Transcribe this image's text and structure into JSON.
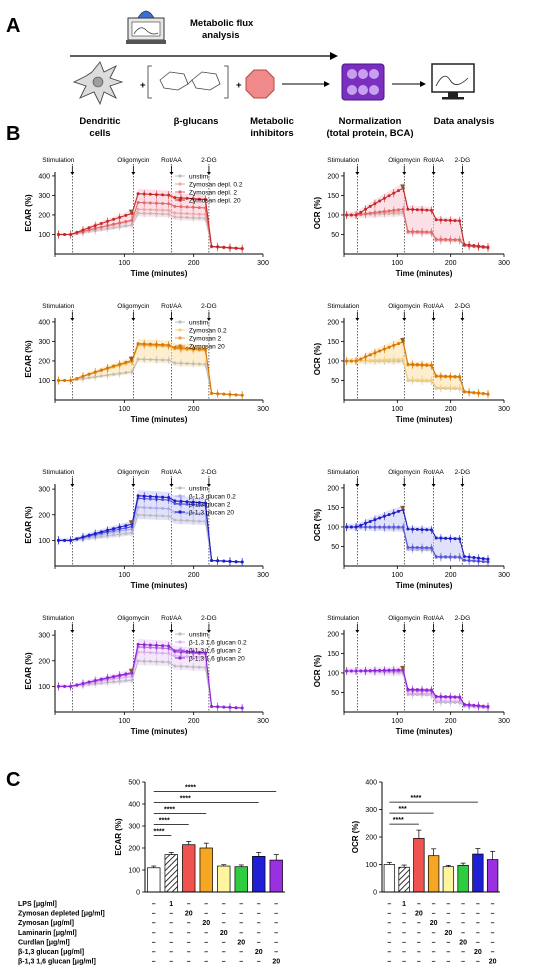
{
  "panel_labels": {
    "a": "A",
    "b": "B",
    "c": "C"
  },
  "workflow": {
    "flux_title_1": "Metabolic flux",
    "flux_title_2": "analysis",
    "steps": [
      "Dendritic cells",
      "β-glucans",
      "Metabolic inhibitors",
      "Normalization (total protein, BCA)",
      "Data analysis"
    ]
  },
  "events": {
    "stimulation": "Stimulation",
    "oligomycin": "Oligomycin",
    "rotaa": "Rot/AA",
    "dg": "2-DG"
  },
  "colors": {
    "unstim": "#bdbdbd",
    "zd_light": "#f2a3a3",
    "zd_mid": "#e06a6a",
    "zd_dark": "#c62828",
    "zy_light": "#f7d07a",
    "zy_mid": "#eda23c",
    "zy_dark": "#d97706",
    "b13_light": "#a9a9ee",
    "b13_mid": "#5656e0",
    "b13_dark": "#1c1cc8",
    "b16_light": "#d9aef2",
    "b16_mid": "#b66ae6",
    "b16_dark": "#8e24d8",
    "band_zd": "#f9c7d5",
    "band_zy": "#fbe0a8",
    "band_b13": "#c9c9f7",
    "band_b16": "#ecd3f7"
  },
  "chart_data": [
    {
      "type": "line",
      "id": "ecar_zd",
      "xlabel": "Time (minutes)",
      "ylabel": "ECAR (%)",
      "xlim": [
        0,
        300
      ],
      "ylim": [
        0,
        420
      ],
      "xticks": [
        0,
        100,
        200,
        300
      ],
      "yticks": [
        100,
        200,
        300,
        400
      ],
      "events_x": [
        25,
        113,
        168,
        222
      ],
      "series": [
        {
          "name": "unstim.",
          "color_key": "unstim",
          "y": [
            100,
            150,
            210,
            190,
            40
          ]
        },
        {
          "name": "Zymosan depl. 0.2",
          "color_key": "zd_light",
          "y": [
            100,
            170,
            230,
            210,
            38
          ]
        },
        {
          "name": "Zymosan depl. 2",
          "color_key": "zd_mid",
          "y": [
            100,
            175,
            265,
            245,
            38
          ]
        },
        {
          "name": "Zymosan depl. 20",
          "color_key": "zd_dark",
          "y": [
            100,
            210,
            310,
            290,
            40
          ]
        }
      ]
    },
    {
      "type": "line",
      "id": "ocr_zd",
      "xlabel": "Time (minutes)",
      "ylabel": "OCR (%)",
      "xlim": [
        0,
        300
      ],
      "ylim": [
        0,
        210
      ],
      "xticks": [
        0,
        100,
        200,
        300
      ],
      "yticks": [
        50,
        100,
        150,
        200
      ],
      "events_x": [
        25,
        113,
        168,
        222
      ],
      "series": [
        {
          "name": "unstim.",
          "color_key": "unstim",
          "y": [
            100,
            105,
            55,
            35,
            22
          ]
        },
        {
          "name": "Zymosan depl. 0.2",
          "color_key": "zd_light",
          "y": [
            100,
            110,
            55,
            35,
            22
          ]
        },
        {
          "name": "Zymosan depl. 2",
          "color_key": "zd_mid",
          "y": [
            100,
            115,
            58,
            38,
            22
          ]
        },
        {
          "name": "Zymosan depl. 20",
          "color_key": "zd_dark",
          "y": [
            100,
            170,
            115,
            88,
            25
          ]
        }
      ]
    },
    {
      "type": "line",
      "id": "ecar_zy",
      "xlabel": "Time (minutes)",
      "ylabel": "ECAR (%)",
      "xlim": [
        0,
        300
      ],
      "ylim": [
        0,
        420
      ],
      "xticks": [
        0,
        100,
        200,
        300
      ],
      "yticks": [
        100,
        200,
        300,
        400
      ],
      "events_x": [
        25,
        113,
        168,
        222
      ],
      "series": [
        {
          "name": "unstim.",
          "color_key": "unstim",
          "y": [
            100,
            145,
            210,
            190,
            35
          ]
        },
        {
          "name": "Zymosan 0.2",
          "color_key": "zy_light",
          "y": [
            100,
            195,
            280,
            260,
            35
          ]
        },
        {
          "name": "Zymosan 2",
          "color_key": "zy_mid",
          "y": [
            100,
            200,
            285,
            265,
            35
          ]
        },
        {
          "name": "Zymosan 20",
          "color_key": "zy_dark",
          "y": [
            100,
            205,
            290,
            270,
            35
          ]
        }
      ]
    },
    {
      "type": "line",
      "id": "ocr_zy",
      "xlabel": "Time (minutes)",
      "ylabel": "OCR (%)",
      "xlim": [
        0,
        300
      ],
      "ylim": [
        0,
        210
      ],
      "xticks": [
        0,
        100,
        200,
        300
      ],
      "yticks": [
        50,
        100,
        150,
        200
      ],
      "events_x": [
        25,
        113,
        168,
        222
      ],
      "series": [
        {
          "name": "unstim.",
          "color_key": "unstim",
          "y": [
            100,
            100,
            50,
            30,
            20
          ]
        },
        {
          "name": "Zymosan 0.2",
          "color_key": "zy_light",
          "y": [
            100,
            105,
            52,
            32,
            20
          ]
        },
        {
          "name": "Zymosan 2",
          "color_key": "zy_mid",
          "y": [
            100,
            150,
            90,
            60,
            22
          ]
        },
        {
          "name": "Zymosan 20",
          "color_key": "zy_dark",
          "y": [
            100,
            150,
            92,
            62,
            22
          ]
        }
      ]
    },
    {
      "type": "line",
      "id": "ecar_b13",
      "xlabel": "Time (minutes)",
      "ylabel": "ECAR (%)",
      "xlim": [
        0,
        300
      ],
      "ylim": [
        0,
        320
      ],
      "xticks": [
        0,
        100,
        200,
        300
      ],
      "yticks": [
        100,
        200,
        300
      ],
      "events_x": [
        25,
        113,
        168,
        222
      ],
      "series": [
        {
          "name": "unstim.",
          "color_key": "unstim",
          "y": [
            100,
            130,
            200,
            180,
            22
          ]
        },
        {
          "name": "β-1,3 glucan 0.2",
          "color_key": "b13_light",
          "y": [
            100,
            145,
            230,
            210,
            22
          ]
        },
        {
          "name": "β-1,3 glucan 2",
          "color_key": "b13_mid",
          "y": [
            100,
            155,
            265,
            245,
            22
          ]
        },
        {
          "name": "β-1,3 glucan 20",
          "color_key": "b13_dark",
          "y": [
            100,
            165,
            275,
            255,
            22
          ]
        }
      ]
    },
    {
      "type": "line",
      "id": "ocr_b13",
      "xlabel": "Time (minutes)",
      "ylabel": "OCR (%)",
      "xlim": [
        0,
        300
      ],
      "ylim": [
        0,
        210
      ],
      "xticks": [
        0,
        100,
        200,
        300
      ],
      "yticks": [
        50,
        100,
        150,
        200
      ],
      "events_x": [
        25,
        113,
        168,
        222
      ],
      "series": [
        {
          "name": "unstim.",
          "color_key": "unstim",
          "y": [
            100,
            95,
            42,
            22,
            15
          ]
        },
        {
          "name": "β-1,3 glucan 0.2",
          "color_key": "b13_light",
          "y": [
            100,
            98,
            45,
            22,
            15
          ]
        },
        {
          "name": "β-1,3 glucan 2",
          "color_key": "b13_mid",
          "y": [
            100,
            100,
            48,
            24,
            15
          ]
        },
        {
          "name": "β-1,3 glucan 20",
          "color_key": "b13_dark",
          "y": [
            100,
            145,
            95,
            72,
            25
          ]
        }
      ]
    },
    {
      "type": "line",
      "id": "ecar_b16",
      "xlabel": "Time (minutes)",
      "ylabel": "ECAR (%)",
      "xlim": [
        0,
        300
      ],
      "ylim": [
        0,
        320
      ],
      "xticks": [
        0,
        100,
        200,
        300
      ],
      "yticks": [
        100,
        200,
        300
      ],
      "events_x": [
        25,
        113,
        168,
        222
      ],
      "series": [
        {
          "name": "unstim.",
          "color_key": "unstim",
          "y": [
            100,
            125,
            200,
            180,
            22
          ]
        },
        {
          "name": "β-1,3 1,6 glucan 0.2",
          "color_key": "b16_light",
          "y": [
            100,
            140,
            235,
            220,
            22
          ]
        },
        {
          "name": "β-1,3 1,6 glucan 2",
          "color_key": "b16_mid",
          "y": [
            100,
            150,
            255,
            235,
            22
          ]
        },
        {
          "name": "β-1,3 1,6 glucan 20",
          "color_key": "b16_dark",
          "y": [
            100,
            155,
            265,
            240,
            22
          ]
        }
      ]
    },
    {
      "type": "line",
      "id": "ocr_b16",
      "xlabel": "Time (minutes)",
      "ylabel": "OCR (%)",
      "xlim": [
        0,
        300
      ],
      "ylim": [
        0,
        210
      ],
      "xticks": [
        0,
        100,
        200,
        300
      ],
      "yticks": [
        50,
        100,
        150,
        200
      ],
      "events_x": [
        25,
        113,
        168,
        222
      ],
      "series": [
        {
          "name": "unstim.",
          "color_key": "unstim",
          "y": [
            105,
            100,
            45,
            25,
            15
          ]
        },
        {
          "name": "β-1,3 1,6 glucan 0.2",
          "color_key": "b16_light",
          "y": [
            105,
            102,
            48,
            28,
            15
          ]
        },
        {
          "name": "β-1,3 1,6 glucan 2",
          "color_key": "b16_mid",
          "y": [
            105,
            105,
            55,
            38,
            18
          ]
        },
        {
          "name": "β-1,3 1,6 glucan 20",
          "color_key": "b16_dark",
          "y": [
            105,
            108,
            58,
            40,
            20
          ]
        }
      ]
    },
    {
      "type": "bar",
      "id": "ecar_bars",
      "ylabel": "ECAR (%)",
      "ylim": [
        0,
        500
      ],
      "yticks": [
        0,
        100,
        200,
        300,
        400,
        500
      ],
      "values": [
        110,
        170,
        215,
        200,
        118,
        115,
        162,
        145
      ],
      "errors": [
        8,
        10,
        15,
        22,
        6,
        8,
        18,
        25
      ],
      "bar_colors": [
        "#ffffff",
        "hatch",
        "#ef5350",
        "#f5a623",
        "#fff59d",
        "#2ecc40",
        "#1f1fd6",
        "#9b30e0"
      ],
      "significance": [
        {
          "from": 0,
          "to": 1,
          "label": "****"
        },
        {
          "from": 0,
          "to": 2,
          "label": "****"
        },
        {
          "from": 0,
          "to": 3,
          "label": "****"
        },
        {
          "from": 0,
          "to": 6,
          "label": "****"
        },
        {
          "from": 0,
          "to": 7,
          "label": "****"
        }
      ]
    },
    {
      "type": "bar",
      "id": "ocr_bars",
      "ylabel": "OCR (%)",
      "ylim": [
        0,
        400
      ],
      "yticks": [
        0,
        100,
        200,
        300,
        400
      ],
      "values": [
        100,
        90,
        195,
        132,
        92,
        97,
        138,
        118
      ],
      "errors": [
        8,
        8,
        30,
        25,
        5,
        8,
        20,
        30
      ],
      "bar_colors": [
        "#ffffff",
        "hatch",
        "#ef5350",
        "#f5a623",
        "#fff59d",
        "#2ecc40",
        "#1f1fd6",
        "#9b30e0"
      ],
      "significance": [
        {
          "from": 0,
          "to": 2,
          "label": "****"
        },
        {
          "from": 0,
          "to": 3,
          "label": "***"
        },
        {
          "from": 0,
          "to": 6,
          "label": "****"
        }
      ]
    }
  ],
  "conditions": {
    "rows": [
      {
        "label": "LPS [μg/ml]",
        "values": [
          "–",
          "1",
          "–",
          "–",
          "–",
          "–",
          "–",
          "–"
        ]
      },
      {
        "label": "Zymosan depleted [μg/ml]",
        "values": [
          "–",
          "–",
          "20",
          "–",
          "–",
          "–",
          "–",
          "–"
        ]
      },
      {
        "label": "Zymosan [μg/ml]",
        "values": [
          "–",
          "–",
          "–",
          "20",
          "–",
          "–",
          "–",
          "–"
        ]
      },
      {
        "label": "Laminarin [μg/ml]",
        "values": [
          "–",
          "–",
          "–",
          "–",
          "20",
          "–",
          "–",
          "–"
        ]
      },
      {
        "label": "Curdlan [μg/ml]",
        "values": [
          "–",
          "–",
          "–",
          "–",
          "–",
          "20",
          "–",
          "–"
        ]
      },
      {
        "label": "β-1,3 glucan [μg/ml]",
        "values": [
          "–",
          "–",
          "–",
          "–",
          "–",
          "–",
          "20",
          "–"
        ]
      },
      {
        "label": "β-1,3 1,6 glucan [μg/ml]",
        "values": [
          "–",
          "–",
          "–",
          "–",
          "–",
          "–",
          "–",
          "20"
        ]
      }
    ]
  }
}
